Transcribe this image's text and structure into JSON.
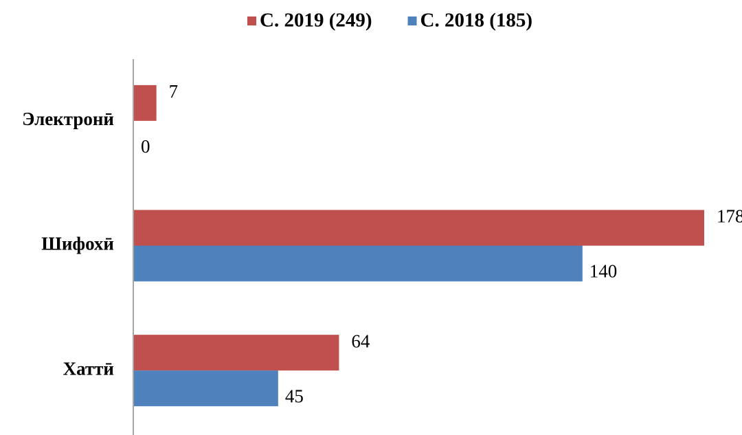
{
  "chart_data": {
    "type": "bar",
    "orientation": "horizontal",
    "categories": [
      "Электронӣ",
      "Шифохӣ",
      "Хаттӣ"
    ],
    "series": [
      {
        "name": "С. 2019 (249)",
        "color": "#c0504d",
        "values": [
          7,
          178,
          64
        ]
      },
      {
        "name": "С. 2018 (185)",
        "color": "#4f81bd",
        "values": [
          0,
          140,
          45
        ]
      }
    ],
    "xlim": [
      0,
      178
    ],
    "legend": "top"
  }
}
